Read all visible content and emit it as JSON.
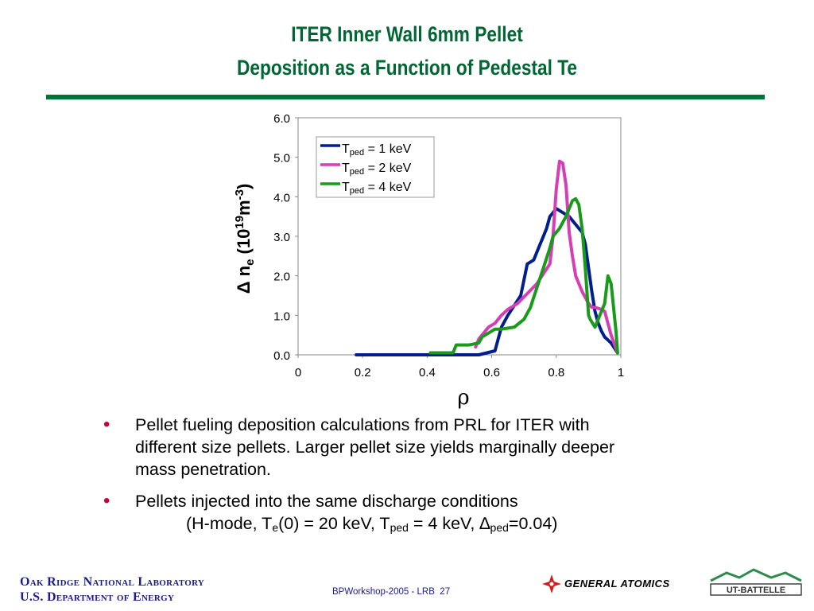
{
  "slide": {
    "title_line1": "ITER  Inner Wall 6mm Pellet",
    "title_line2": "Deposition as a Function of Pedestal Te"
  },
  "chart_data": {
    "type": "line",
    "ylabel_prefix": "Δ n",
    "ylabel_sub": "e",
    "ylabel_mid": " (10",
    "ylabel_sup1": "19",
    "ylabel_m": "m",
    "ylabel_sup2": "-3",
    "ylabel_end": ")",
    "xlabel": "ρ",
    "xlim": [
      0,
      1
    ],
    "ylim": [
      0,
      6
    ],
    "x_ticks": [
      "0",
      "0.2",
      "0.4",
      "0.6",
      "0.8",
      "1"
    ],
    "y_ticks": [
      "0.0",
      "1.0",
      "2.0",
      "3.0",
      "4.0",
      "5.0",
      "6.0"
    ],
    "legend_position": "top-left",
    "series": [
      {
        "name_main": "T",
        "name_sub": "ped",
        "name_rest": " = 1 keV",
        "color": "#001f8c",
        "x": [
          0.18,
          0.21,
          0.56,
          0.61,
          0.62,
          0.63,
          0.65,
          0.69,
          0.7,
          0.71,
          0.73,
          0.74,
          0.75,
          0.76,
          0.77,
          0.78,
          0.8,
          0.82,
          0.84,
          0.86,
          0.88,
          0.89,
          0.9,
          0.91,
          0.92,
          0.93,
          0.94,
          0.95,
          0.97,
          0.99
        ],
        "y": [
          0.0,
          0.0,
          0.0,
          0.1,
          0.4,
          0.7,
          1.0,
          1.5,
          1.9,
          2.3,
          2.4,
          2.6,
          2.8,
          3.0,
          3.2,
          3.5,
          3.7,
          3.6,
          3.5,
          3.3,
          3.1,
          2.8,
          2.2,
          1.6,
          1.1,
          0.8,
          0.6,
          0.45,
          0.3,
          0.05
        ]
      },
      {
        "name_main": "T",
        "name_sub": "ped",
        "name_rest": " = 2 keV",
        "color": "#d63eb5",
        "x": [
          0.55,
          0.56,
          0.57,
          0.59,
          0.61,
          0.63,
          0.65,
          0.68,
          0.71,
          0.74,
          0.76,
          0.78,
          0.79,
          0.8,
          0.81,
          0.82,
          0.83,
          0.84,
          0.85,
          0.86,
          0.88,
          0.9,
          0.91,
          0.92,
          0.94,
          0.95,
          0.97,
          0.99
        ],
        "y": [
          0.2,
          0.4,
          0.5,
          0.7,
          0.8,
          1.0,
          1.15,
          1.3,
          1.55,
          1.8,
          2.05,
          2.3,
          3.0,
          4.2,
          4.9,
          4.85,
          4.3,
          3.1,
          2.5,
          2.0,
          1.6,
          1.3,
          1.2,
          1.2,
          1.15,
          1.1,
          0.5,
          0.05
        ]
      },
      {
        "name_main": "T",
        "name_sub": "ped",
        "name_rest": " = 4 keV",
        "color": "#1a9a1a",
        "x": [
          0.41,
          0.48,
          0.49,
          0.53,
          0.56,
          0.57,
          0.59,
          0.61,
          0.63,
          0.67,
          0.7,
          0.72,
          0.74,
          0.76,
          0.78,
          0.79,
          0.81,
          0.83,
          0.84,
          0.85,
          0.86,
          0.87,
          0.88,
          0.89,
          0.9,
          0.905,
          0.92,
          0.95,
          0.96,
          0.97,
          0.985,
          0.99
        ],
        "y": [
          0.05,
          0.05,
          0.25,
          0.25,
          0.3,
          0.45,
          0.55,
          0.65,
          0.65,
          0.7,
          0.9,
          1.2,
          1.7,
          2.2,
          2.7,
          3.0,
          3.2,
          3.5,
          3.7,
          3.9,
          3.95,
          3.8,
          3.2,
          2.2,
          1.0,
          0.9,
          0.7,
          1.3,
          2.0,
          1.8,
          0.6,
          0.05
        ]
      }
    ]
  },
  "bullets": [
    {
      "lines": [
        "Pellet fueling deposition calculations from PRL for ITER with",
        "different size pellets.  Larger pellet size yields marginally deeper",
        "mass penetration."
      ]
    },
    {
      "line1": "Pellets injected into the same discharge conditions",
      "cond_a": "(H-mode, T",
      "cond_a_sub": "e",
      "cond_b": "(0) = 20 keV, T",
      "cond_b_sub": "ped",
      "cond_c": " = 4 keV, ∆",
      "cond_c_sub": "ped",
      "cond_d": "=0.04)"
    }
  ],
  "footer": {
    "lab_line1": "Oak Ridge National Laboratory",
    "lab_line2": "U.S. Department of Energy",
    "center_text": "BPWorkshop-2005  - LRB",
    "page_number": "27",
    "ga_text": "GENERAL ATOMICS",
    "utb_text": "UT-BATTELLE"
  }
}
